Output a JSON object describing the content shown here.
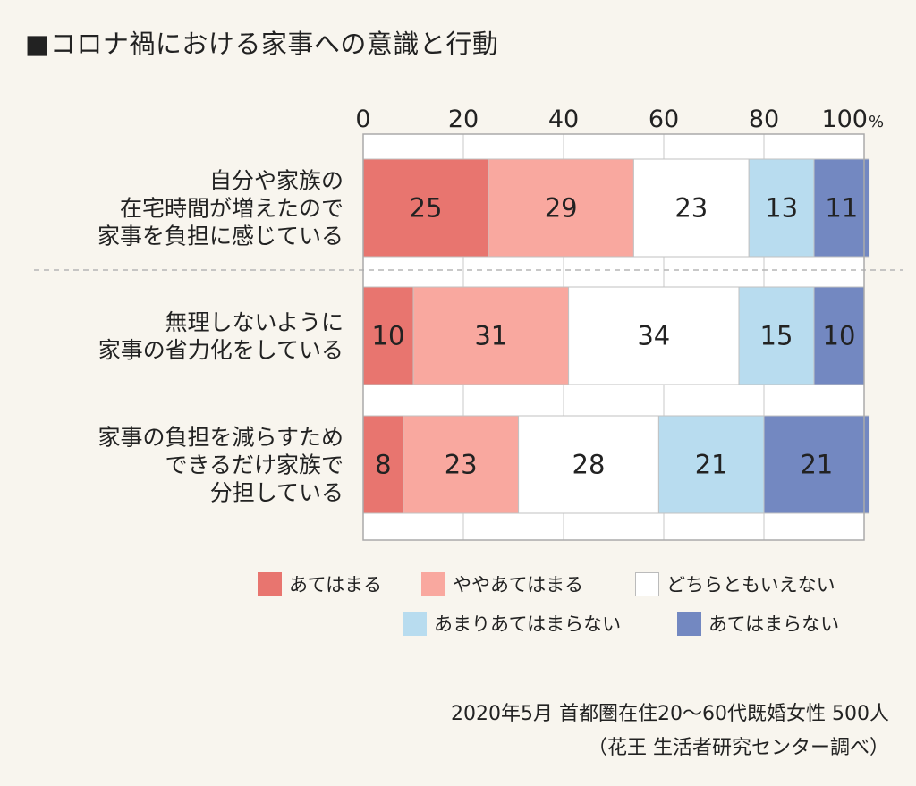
{
  "title": "■コロナ禍における家事への意識と行動",
  "chart_data": {
    "type": "bar",
    "orientation": "horizontal-stacked-percent",
    "xlim": [
      0,
      100
    ],
    "ticks": [
      "0",
      "20",
      "40",
      "60",
      "80",
      "100"
    ],
    "tick_unit": "%",
    "grid": true,
    "legend_position": "bottom",
    "categories": [
      [
        "自分や家族の",
        "在宅時間が増えたので",
        "家事を負担に感じている"
      ],
      [
        "無理しないように",
        "家事の省力化をしている"
      ],
      [
        "家事の負担を減らすため",
        "できるだけ家族で",
        "分担している"
      ]
    ],
    "series": [
      {
        "name": "あてはまる",
        "color": "#e8756f",
        "values": [
          25,
          10,
          8
        ]
      },
      {
        "name": "ややあてはまる",
        "color": "#f9a89f",
        "values": [
          29,
          31,
          23
        ]
      },
      {
        "name": "どちらともいえない",
        "color": "#ffffff",
        "values": [
          23,
          34,
          28
        ]
      },
      {
        "name": "あまりあてはまらない",
        "color": "#b8dcef",
        "values": [
          13,
          15,
          21
        ]
      },
      {
        "name": "あてはまらない",
        "color": "#7388c1",
        "values": [
          11,
          10,
          21
        ]
      }
    ]
  },
  "footer": {
    "line1": "2020年5月 首都圏在住20〜60代既婚女性 500人",
    "line2": "（花王 生活者研究センター調べ）"
  }
}
